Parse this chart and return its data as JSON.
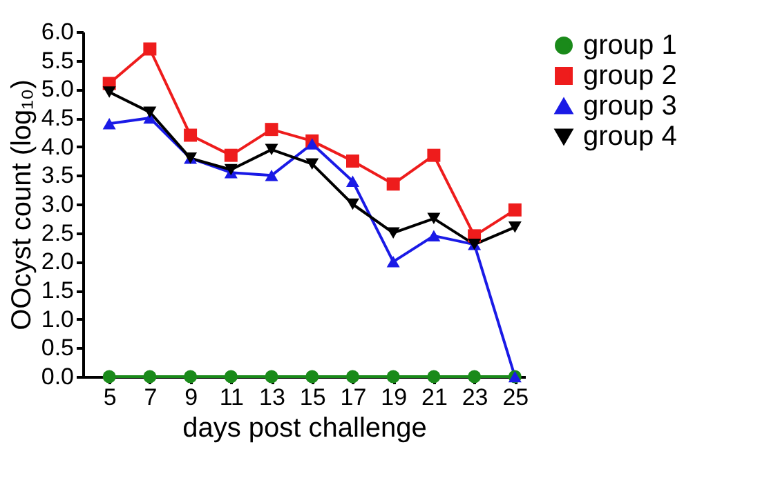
{
  "chart_data": {
    "type": "line",
    "xlabel": "days post challenge",
    "ylabel": "OOcyst count (log₁₀)",
    "x": [
      5,
      7,
      9,
      11,
      13,
      15,
      17,
      19,
      21,
      23,
      25
    ],
    "xlim": [
      3.7,
      25.5
    ],
    "xticks": [
      5,
      7,
      9,
      11,
      13,
      15,
      17,
      19,
      21,
      23,
      25
    ],
    "ylim": [
      0,
      6
    ],
    "yticks": [
      {
        "value": 0,
        "label": "0.0"
      },
      0.5,
      {
        "value": 1,
        "label": "1.0"
      },
      1.5,
      {
        "value": 2,
        "label": "2.0"
      },
      2.5,
      {
        "value": 3,
        "label": "3.0"
      },
      3.5,
      {
        "value": 4,
        "label": "4.0"
      },
      4.5,
      {
        "value": 5,
        "label": "5.0"
      },
      5.5,
      {
        "value": 6,
        "label": "6.0"
      }
    ],
    "grid": false,
    "legend": "right",
    "line_style": "solid",
    "series": [
      {
        "name": "group 1",
        "color": "#1a8a1a",
        "marker": "circle",
        "values": [
          0,
          0,
          0,
          0,
          0,
          0,
          0,
          0,
          0,
          0,
          0
        ]
      },
      {
        "name": "group 2",
        "color": "#ee1c1c",
        "marker": "square",
        "values": [
          5.1,
          5.7,
          4.2,
          3.85,
          4.3,
          4.1,
          3.75,
          3.35,
          3.85,
          2.45,
          2.9
        ]
      },
      {
        "name": "group 3",
        "color": "#1a1ae6",
        "marker": "triangle",
        "values": [
          4.4,
          4.5,
          3.8,
          3.55,
          3.5,
          4.05,
          3.4,
          2.0,
          2.45,
          2.3,
          0
        ]
      },
      {
        "name": "group 4",
        "color": "#000000",
        "marker": "triangle-down",
        "values": [
          4.95,
          4.6,
          3.8,
          3.6,
          3.95,
          3.7,
          3.0,
          2.5,
          2.75,
          2.3,
          2.6
        ]
      }
    ]
  }
}
